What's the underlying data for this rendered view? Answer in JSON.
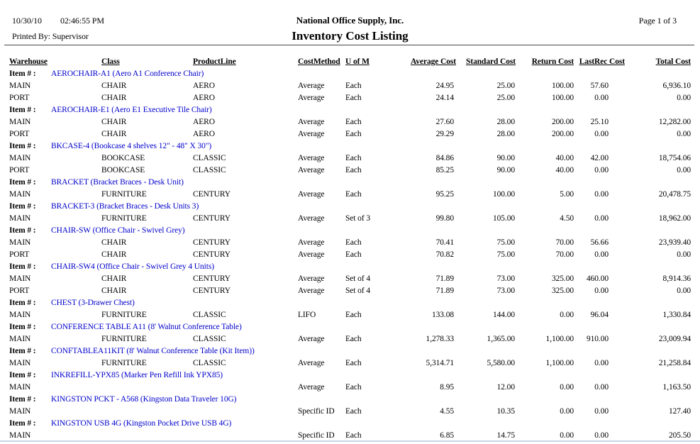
{
  "header": {
    "date": "10/30/10",
    "time": "02:46:55 PM",
    "printed_by": "Printed By: Supervisor",
    "company": "National Office Supply, Inc.",
    "title": "Inventory Cost Listing",
    "page": "Page 1 of 3"
  },
  "columns": [
    "Warehouse",
    "Class",
    "ProductLine",
    "CostMethod",
    "U of M",
    "Average Cost",
    "Standard Cost",
    "Return Cost",
    "LastRec Cost",
    "Total Cost"
  ],
  "item_label": "Item # :",
  "colors": {
    "link_blue": "#0000cc",
    "divider": "#444444",
    "bottom_edge": "#c9d5e6"
  },
  "rows": [
    {
      "type": "item",
      "description": "AEROCHAIR-A1 (Aero A1 Conference Chair)"
    },
    {
      "type": "data",
      "warehouse": "MAIN",
      "class": "CHAIR",
      "product_line": "AERO",
      "cost_method": "Average",
      "uofm": "Each",
      "average_cost": "24.95",
      "standard_cost": "25.00",
      "return_cost": "100.00",
      "last_rec_cost": "57.60",
      "total_cost": "6,936.10"
    },
    {
      "type": "data",
      "warehouse": "PORT",
      "class": "CHAIR",
      "product_line": "AERO",
      "cost_method": "Average",
      "uofm": "Each",
      "average_cost": "24.14",
      "standard_cost": "25.00",
      "return_cost": "100.00",
      "last_rec_cost": "0.00",
      "total_cost": "0.00"
    },
    {
      "type": "item",
      "description": "AEROCHAIR-E1 (Aero E1 Executive Tile Chair)"
    },
    {
      "type": "data",
      "warehouse": "MAIN",
      "class": "CHAIR",
      "product_line": "AERO",
      "cost_method": "Average",
      "uofm": "Each",
      "average_cost": "27.60",
      "standard_cost": "28.00",
      "return_cost": "200.00",
      "last_rec_cost": "25.10",
      "total_cost": "12,282.00"
    },
    {
      "type": "data",
      "warehouse": "PORT",
      "class": "CHAIR",
      "product_line": "AERO",
      "cost_method": "Average",
      "uofm": "Each",
      "average_cost": "29.29",
      "standard_cost": "28.00",
      "return_cost": "200.00",
      "last_rec_cost": "0.00",
      "total_cost": "0.00"
    },
    {
      "type": "item",
      "description": "BKCASE-4 (Bookcase 4 shelves 12\" - 48\" X 30\")"
    },
    {
      "type": "data",
      "warehouse": "MAIN",
      "class": "BOOKCASE",
      "product_line": "CLASSIC",
      "cost_method": "Average",
      "uofm": "Each",
      "average_cost": "84.86",
      "standard_cost": "90.00",
      "return_cost": "40.00",
      "last_rec_cost": "42.00",
      "total_cost": "18,754.06"
    },
    {
      "type": "data",
      "warehouse": "PORT",
      "class": "BOOKCASE",
      "product_line": "CLASSIC",
      "cost_method": "Average",
      "uofm": "Each",
      "average_cost": "85.25",
      "standard_cost": "90.00",
      "return_cost": "40.00",
      "last_rec_cost": "0.00",
      "total_cost": "0.00"
    },
    {
      "type": "item",
      "description": "BRACKET (Bracket Braces - Desk Unit)"
    },
    {
      "type": "data",
      "warehouse": "MAIN",
      "class": "FURNITURE",
      "product_line": "CENTURY",
      "cost_method": "Average",
      "uofm": "Each",
      "average_cost": "95.25",
      "standard_cost": "100.00",
      "return_cost": "5.00",
      "last_rec_cost": "0.00",
      "total_cost": "20,478.75"
    },
    {
      "type": "item",
      "description": "BRACKET-3 (Bracket Braces - Desk Units 3)"
    },
    {
      "type": "data",
      "warehouse": "MAIN",
      "class": "FURNITURE",
      "product_line": "CENTURY",
      "cost_method": "Average",
      "uofm": "Set of 3",
      "average_cost": "99.80",
      "standard_cost": "105.00",
      "return_cost": "4.50",
      "last_rec_cost": "0.00",
      "total_cost": "18,962.00"
    },
    {
      "type": "item",
      "description": "CHAIR-SW (Office Chair - Swivel Grey)"
    },
    {
      "type": "data",
      "warehouse": "MAIN",
      "class": "CHAIR",
      "product_line": "CENTURY",
      "cost_method": "Average",
      "uofm": "Each",
      "average_cost": "70.41",
      "standard_cost": "75.00",
      "return_cost": "70.00",
      "last_rec_cost": "56.66",
      "total_cost": "23,939.40"
    },
    {
      "type": "data",
      "warehouse": "PORT",
      "class": "CHAIR",
      "product_line": "CENTURY",
      "cost_method": "Average",
      "uofm": "Each",
      "average_cost": "70.82",
      "standard_cost": "75.00",
      "return_cost": "70.00",
      "last_rec_cost": "0.00",
      "total_cost": "0.00"
    },
    {
      "type": "item",
      "description": "CHAIR-SW4 (Office Chair - Swivel Grey 4 Units)"
    },
    {
      "type": "data",
      "warehouse": "MAIN",
      "class": "CHAIR",
      "product_line": "CENTURY",
      "cost_method": "Average",
      "uofm": "Set of 4",
      "average_cost": "71.89",
      "standard_cost": "73.00",
      "return_cost": "325.00",
      "last_rec_cost": "460.00",
      "total_cost": "8,914.36"
    },
    {
      "type": "data",
      "warehouse": "PORT",
      "class": "CHAIR",
      "product_line": "CENTURY",
      "cost_method": "Average",
      "uofm": "Set of 4",
      "average_cost": "71.89",
      "standard_cost": "73.00",
      "return_cost": "325.00",
      "last_rec_cost": "0.00",
      "total_cost": "0.00"
    },
    {
      "type": "item",
      "description": "CHEST (3-Drawer Chest)"
    },
    {
      "type": "data",
      "warehouse": "MAIN",
      "class": "FURNITURE",
      "product_line": "CLASSIC",
      "cost_method": "LIFO",
      "uofm": "Each",
      "average_cost": "133.08",
      "standard_cost": "144.00",
      "return_cost": "0.00",
      "last_rec_cost": "96.04",
      "total_cost": "1,330.84"
    },
    {
      "type": "item",
      "description": "CONFERENCE TABLE A11 (8' Walnut Conference Table)"
    },
    {
      "type": "data",
      "warehouse": "MAIN",
      "class": "FURNITURE",
      "product_line": "CLASSIC",
      "cost_method": "Average",
      "uofm": "Each",
      "average_cost": "1,278.33",
      "standard_cost": "1,365.00",
      "return_cost": "1,100.00",
      "last_rec_cost": "910.00",
      "total_cost": "23,009.94"
    },
    {
      "type": "item",
      "description": "CONFTABLEA11KIT (8' Walnut Conference Table (Kit Item))"
    },
    {
      "type": "data",
      "warehouse": "MAIN",
      "class": "FURNITURE",
      "product_line": "CLASSIC",
      "cost_method": "Average",
      "uofm": "Each",
      "average_cost": "5,314.71",
      "standard_cost": "5,580.00",
      "return_cost": "1,100.00",
      "last_rec_cost": "0.00",
      "total_cost": "21,258.84"
    },
    {
      "type": "item",
      "description": "INKREFILL-YPX85 (Marker Pen Refill Ink YPX85)"
    },
    {
      "type": "data",
      "warehouse": "MAIN",
      "class": "",
      "product_line": "",
      "cost_method": "Average",
      "uofm": "Each",
      "average_cost": "8.95",
      "standard_cost": "12.00",
      "return_cost": "0.00",
      "last_rec_cost": "0.00",
      "total_cost": "1,163.50"
    },
    {
      "type": "item",
      "description": "KINGSTON PCKT - A568 (Kingston Data Traveler 10G)"
    },
    {
      "type": "data",
      "warehouse": "MAIN",
      "class": "",
      "product_line": "",
      "cost_method": "Specific ID",
      "uofm": "Each",
      "average_cost": "4.55",
      "standard_cost": "10.35",
      "return_cost": "0.00",
      "last_rec_cost": "0.00",
      "total_cost": "127.40"
    },
    {
      "type": "item",
      "description": "KINGSTON USB 4G (Kingston Pocket Drive USB 4G)"
    },
    {
      "type": "data",
      "warehouse": "MAIN",
      "class": "",
      "product_line": "",
      "cost_method": "Specific ID",
      "uofm": "Each",
      "average_cost": "6.85",
      "standard_cost": "14.75",
      "return_cost": "0.00",
      "last_rec_cost": "0.00",
      "total_cost": "205.50"
    }
  ]
}
